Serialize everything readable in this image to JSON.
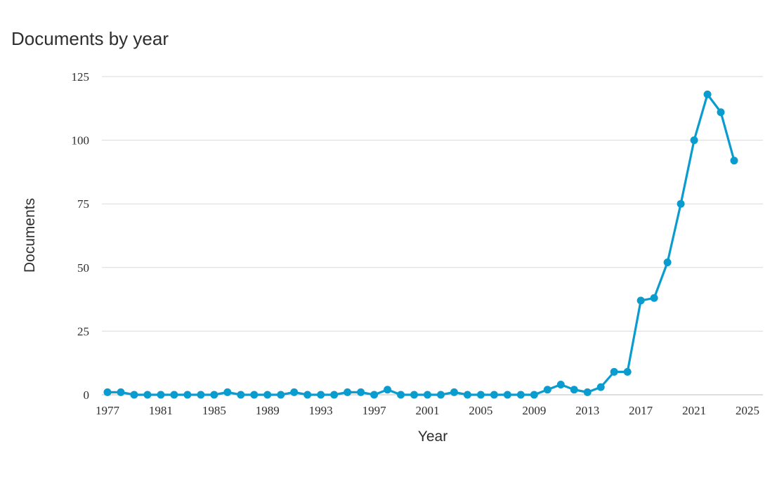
{
  "chart_data": {
    "type": "line",
    "title": "Documents by year",
    "xlabel": "Year",
    "ylabel": "Documents",
    "ylim": [
      0,
      125
    ],
    "yticks": [
      0,
      25,
      50,
      75,
      100,
      125
    ],
    "xticks": [
      1977,
      1981,
      1985,
      1989,
      1993,
      1997,
      2001,
      2005,
      2009,
      2013,
      2017,
      2021,
      2025
    ],
    "xlim": [
      1977,
      2025
    ],
    "grid": true,
    "color": "#0a9ccf",
    "series": [
      {
        "x": [
          1977,
          1978,
          1979,
          1980,
          1981,
          1982,
          1983,
          1984,
          1985,
          1986,
          1987,
          1988,
          1989,
          1990,
          1991,
          1992,
          1993,
          1994,
          1995,
          1996,
          1997,
          1998,
          1999,
          2000,
          2001,
          2002,
          2003,
          2004,
          2005,
          2006,
          2007,
          2008,
          2009,
          2010,
          2011,
          2012,
          2013,
          2014,
          2015,
          2016,
          2017,
          2018,
          2019,
          2020,
          2021,
          2022,
          2023,
          2024
        ],
        "values": [
          1,
          1,
          0,
          0,
          0,
          0,
          0,
          0,
          0,
          1,
          0,
          0,
          0,
          0,
          1,
          0,
          0,
          0,
          1,
          1,
          0,
          2,
          0,
          0,
          0,
          0,
          1,
          0,
          0,
          0,
          0,
          0,
          0,
          2,
          4,
          2,
          1,
          3,
          9,
          9,
          37,
          38,
          52,
          75,
          100,
          118,
          111,
          92
        ]
      }
    ]
  }
}
